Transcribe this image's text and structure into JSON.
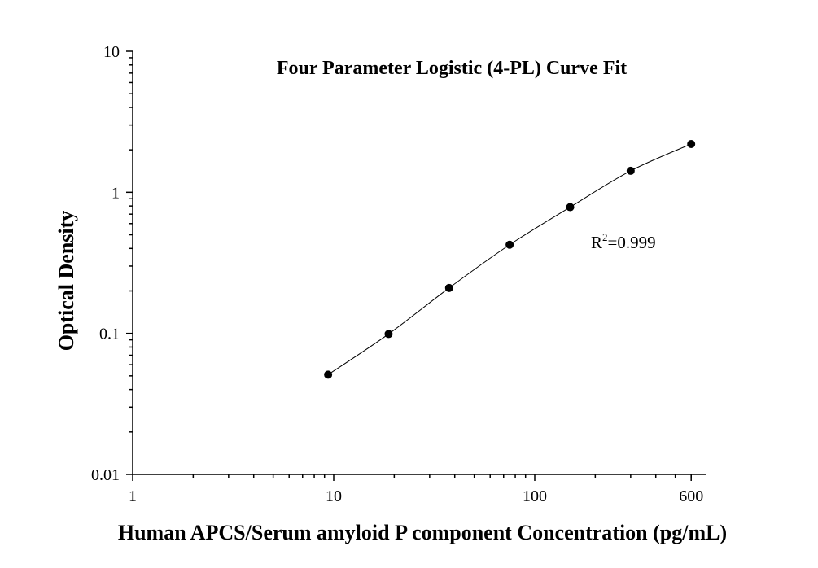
{
  "chart_data": {
    "type": "scatter",
    "title": "Four Parameter Logistic (4-PL) Curve Fit",
    "xlabel": "Human APCS/Serum amyloid P component Concentration (pg/mL)",
    "ylabel": "Optical Density",
    "x_scale": "log",
    "y_scale": "log",
    "xlim": [
      1,
      600
    ],
    "ylim": [
      0.01,
      10
    ],
    "x_tick_labels": [
      "1",
      "10",
      "100",
      "600"
    ],
    "x_tick_values": [
      1,
      10,
      100,
      600
    ],
    "y_tick_labels": [
      "0.01",
      "0.1",
      "1",
      "10"
    ],
    "y_tick_values": [
      0.01,
      0.1,
      1,
      10
    ],
    "grid": false,
    "series": [
      {
        "x": [
          9.38,
          18.75,
          37.5,
          75,
          150,
          300,
          600
        ],
        "y": [
          0.051,
          0.099,
          0.21,
          0.425,
          0.785,
          1.42,
          2.2
        ]
      }
    ],
    "annotation": {
      "prefix": "R",
      "superscript": "2",
      "value": "=0.999"
    },
    "colors": {
      "marker": "#000000",
      "curve": "#000000"
    }
  }
}
